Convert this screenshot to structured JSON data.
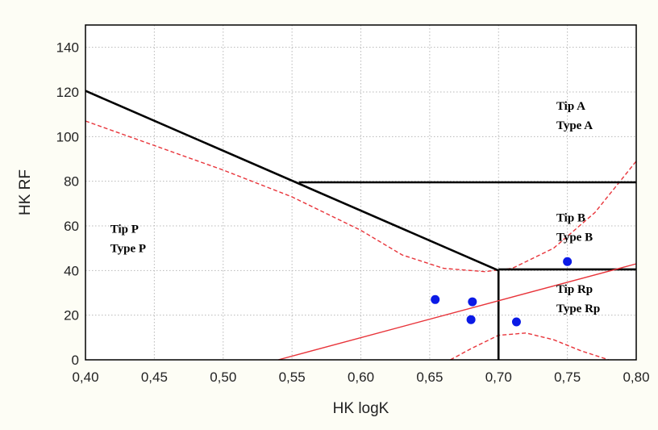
{
  "chart_data": {
    "type": "scatter",
    "xlabel": "HK logK",
    "ylabel": "HK RF",
    "xlim": [
      0.4,
      0.8
    ],
    "ylim": [
      0,
      150
    ],
    "grid": true,
    "x_ticks": [
      "0,40",
      "0,45",
      "0,50",
      "0,55",
      "0,60",
      "0,65",
      "0,70",
      "0,75",
      "0,80"
    ],
    "y_ticks": [
      "0",
      "20",
      "40",
      "60",
      "80",
      "100",
      "120",
      "140"
    ],
    "points": [
      {
        "x": 0.654,
        "y": 27
      },
      {
        "x": 0.681,
        "y": 26
      },
      {
        "x": 0.68,
        "y": 18
      },
      {
        "x": 0.713,
        "y": 17
      },
      {
        "x": 0.75,
        "y": 44
      }
    ],
    "boundary_lines": [
      {
        "name": "",
        "style": "solid-black",
        "points": [
          [
            0.4,
            120.5
          ],
          [
            0.7,
            40
          ]
        ]
      },
      {
        "name": "",
        "style": "solid-black",
        "points": [
          [
            0.555,
            79.5
          ],
          [
            0.8,
            79.5
          ]
        ]
      },
      {
        "name": "",
        "style": "solid-black",
        "points": [
          [
            0.7,
            40.5
          ],
          [
            0.8,
            40.5
          ]
        ]
      },
      {
        "name": "",
        "style": "solid-black",
        "points": [
          [
            0.7,
            40
          ],
          [
            0.7,
            0
          ]
        ]
      },
      {
        "name": "",
        "style": "solid-red",
        "points": [
          [
            0.54,
            0
          ],
          [
            0.8,
            43
          ]
        ]
      }
    ],
    "confidence_bands": [
      {
        "name": "",
        "style": "dashed-red",
        "points": [
          [
            0.4,
            107
          ],
          [
            0.45,
            96
          ],
          [
            0.5,
            85
          ],
          [
            0.55,
            73
          ],
          [
            0.6,
            58
          ],
          [
            0.63,
            47
          ],
          [
            0.66,
            41
          ],
          [
            0.69,
            39.5
          ],
          [
            0.71,
            41
          ],
          [
            0.74,
            50
          ],
          [
            0.77,
            66
          ],
          [
            0.8,
            89
          ]
        ]
      },
      {
        "name": "",
        "style": "dashed-red",
        "points": [
          [
            0.665,
            0
          ],
          [
            0.68,
            5
          ],
          [
            0.7,
            11
          ],
          [
            0.72,
            12
          ],
          [
            0.74,
            9
          ],
          [
            0.76,
            4
          ],
          [
            0.78,
            0
          ]
        ]
      }
    ],
    "region_labels": [
      {
        "line1": "Tip A",
        "line2": "Type A",
        "x": 0.742,
        "y": 112
      },
      {
        "line1": "Tip B",
        "line2": "Type B",
        "x": 0.742,
        "y": 62
      },
      {
        "line1": "Tip P",
        "line2": "Type P",
        "x": 0.418,
        "y": 57
      },
      {
        "line1": "Tip Rp",
        "line2": "Type Rp",
        "x": 0.742,
        "y": 30
      }
    ],
    "colors": {
      "points": "#0b1ae6",
      "boundary": "#000000",
      "regression": "#e8343a",
      "grid": "#b8b8b8",
      "plot_bg": "#ffffff",
      "page_bg": "#fdfdf5"
    }
  }
}
